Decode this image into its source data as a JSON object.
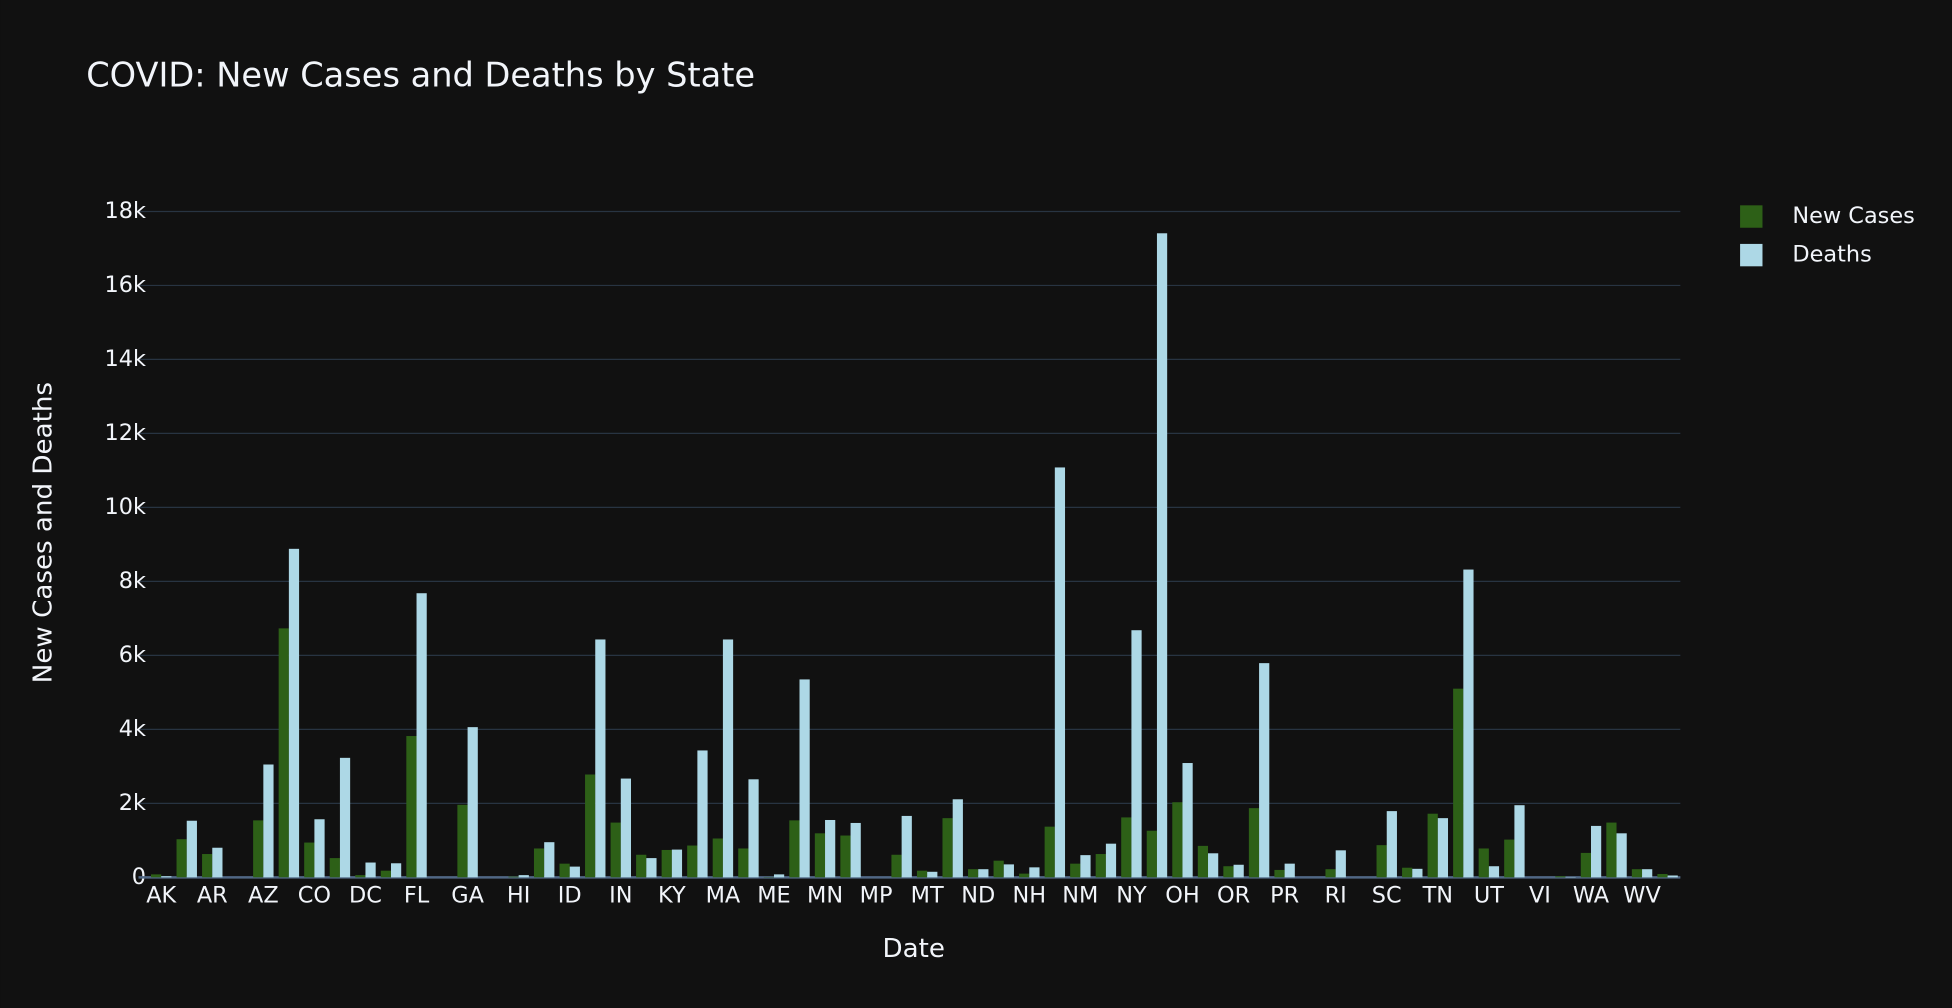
{
  "chart_data": {
    "type": "bar",
    "title": "COVID: New Cases and Deaths by State",
    "x_label": "Date",
    "y_label": "New Cases and Deaths",
    "categories": [
      "AK",
      null,
      "AR",
      null,
      "AZ",
      null,
      "CO",
      null,
      "DC",
      null,
      "FL",
      null,
      "GA",
      null,
      "HI",
      null,
      "ID",
      null,
      "IN",
      null,
      "KY",
      null,
      "MA",
      null,
      "ME",
      null,
      "MN",
      null,
      "MP",
      null,
      "MT",
      null,
      "ND",
      null,
      "NH",
      null,
      "NM",
      null,
      "NY",
      null,
      "OH",
      null,
      "OR",
      null,
      "PR",
      null,
      "RI",
      null,
      "SC",
      null,
      "TN",
      null,
      "UT",
      null,
      "VI",
      null,
      "WA",
      null,
      "WV",
      null
    ],
    "series": [
      {
        "name": "New Cases",
        "color": "#2d6017",
        "values": [
          80,
          1030,
          630,
          0,
          1540,
          6730,
          940,
          520,
          60,
          180,
          3820,
          0,
          1960,
          0,
          20,
          780,
          370,
          2780,
          1480,
          610,
          740,
          860,
          1050,
          780,
          10,
          1540,
          1190,
          1130,
          0,
          610,
          180,
          1600,
          220,
          450,
          100,
          1370,
          370,
          630,
          1620,
          1260,
          2030,
          850,
          300,
          1870,
          200,
          0,
          220,
          0,
          870,
          260,
          1720,
          5100,
          780,
          1020,
          0,
          30,
          660,
          1480,
          220,
          90
        ]
      },
      {
        "name": "Deaths",
        "color": "#add8e6",
        "values": [
          30,
          1530,
          800,
          0,
          3050,
          8880,
          1570,
          3230,
          400,
          380,
          7680,
          0,
          4060,
          0,
          60,
          950,
          290,
          6430,
          2670,
          520,
          750,
          3430,
          6430,
          2650,
          80,
          5350,
          1550,
          1470,
          0,
          1660,
          150,
          2110,
          220,
          350,
          270,
          11080,
          600,
          910,
          6680,
          17410,
          3090,
          650,
          340,
          5790,
          370,
          0,
          730,
          0,
          1790,
          230,
          1600,
          8320,
          300,
          1950,
          0,
          10,
          1390,
          1190,
          220,
          50
        ]
      }
    ],
    "ylim": [
      0,
      18300
    ],
    "yticks": [
      0,
      {
        "value": 2000,
        "label": "2k"
      },
      {
        "value": 4000,
        "label": "4k"
      },
      {
        "value": 6000,
        "label": "6k"
      },
      {
        "value": 8000,
        "label": "8k"
      },
      {
        "value": 10000,
        "label": "10k"
      },
      {
        "value": 12000,
        "label": "12k"
      },
      {
        "value": 14000,
        "label": "14k"
      },
      {
        "value": 16000,
        "label": "16k"
      },
      {
        "value": 18000,
        "label": "18k"
      }
    ],
    "grid": true,
    "legend": "top-right"
  }
}
